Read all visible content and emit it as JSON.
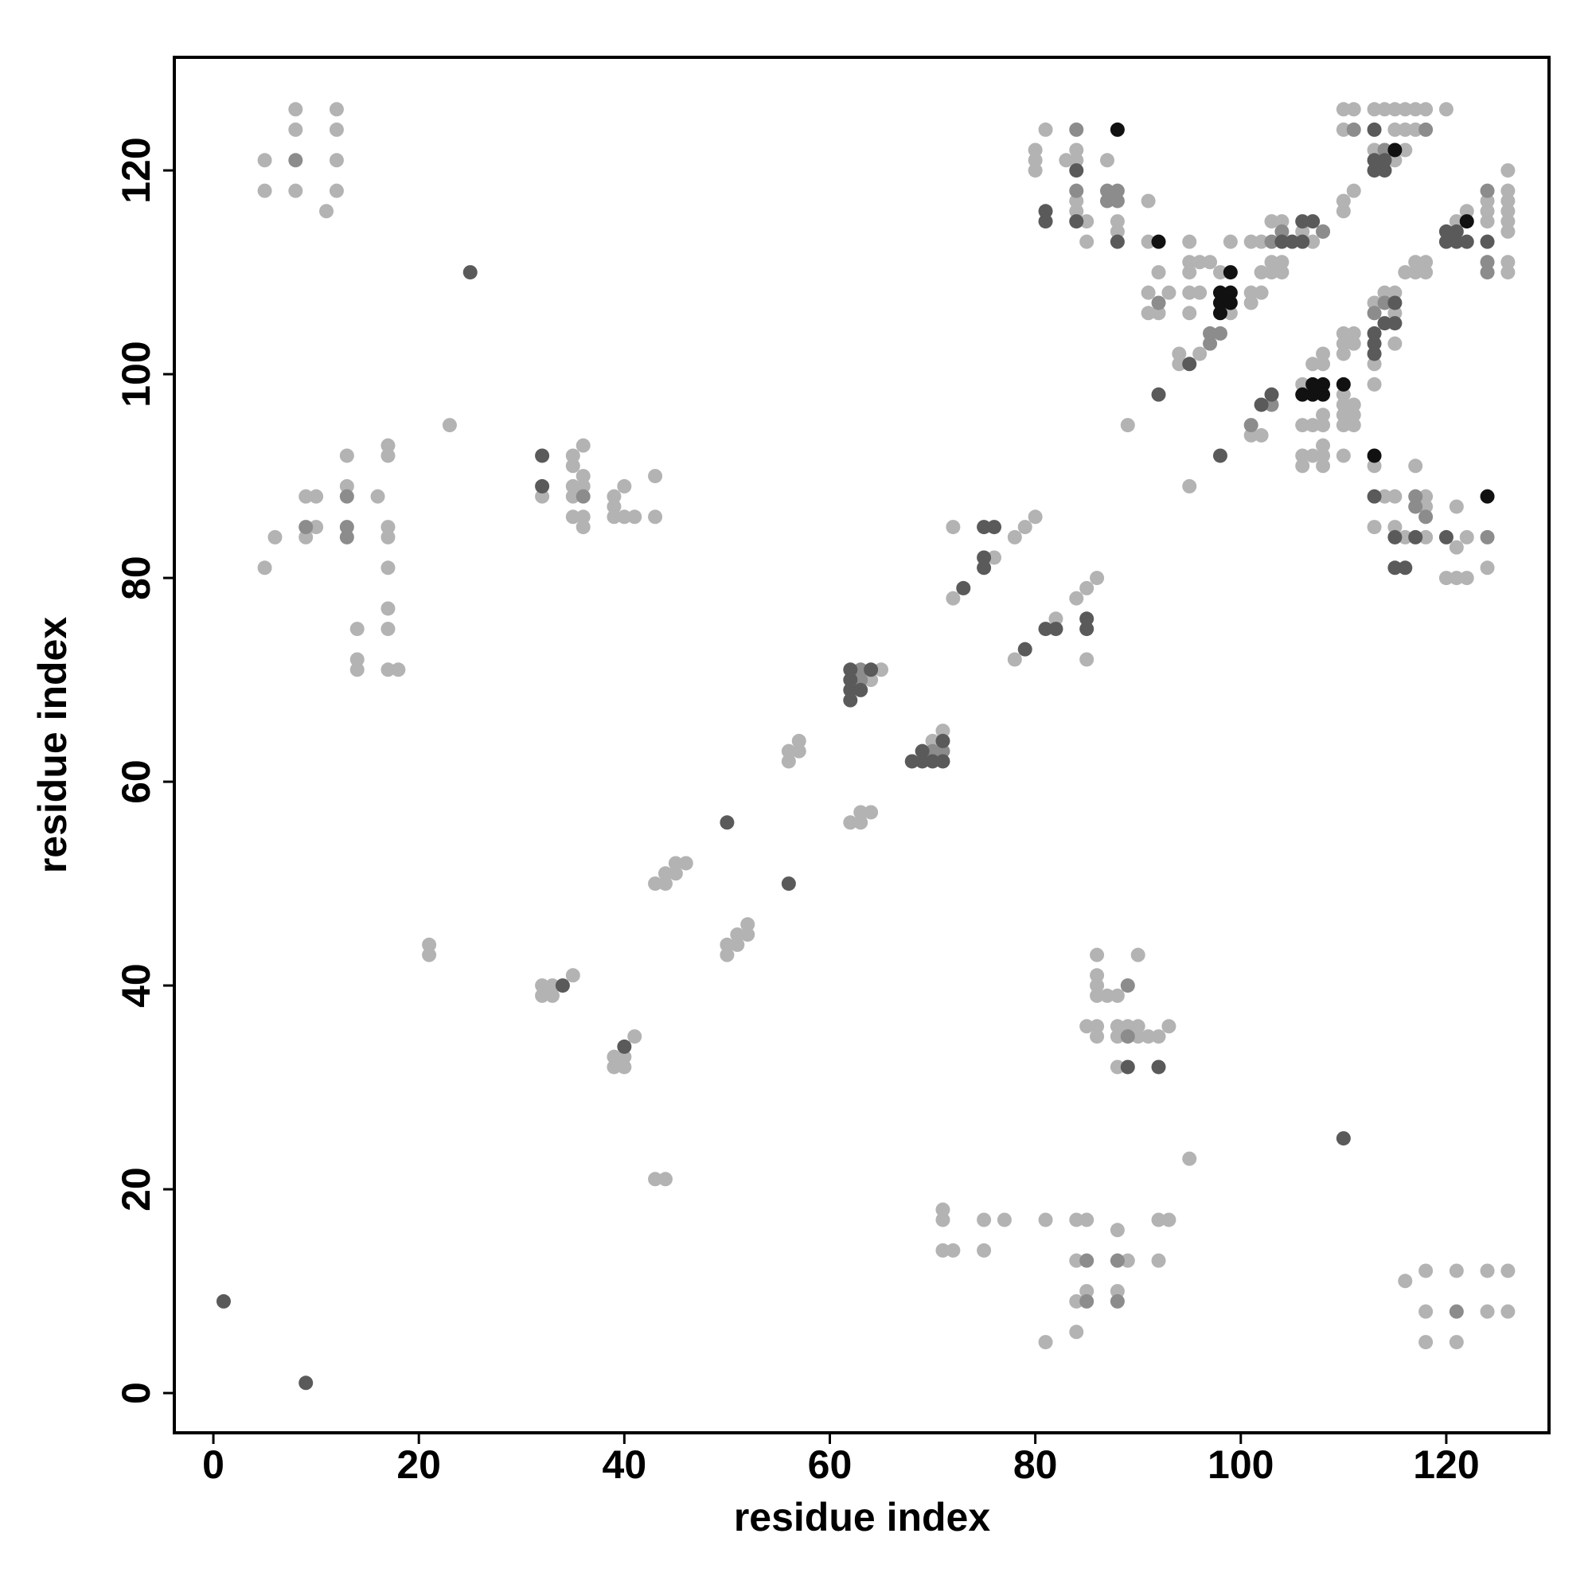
{
  "chart_data": {
    "type": "scatter",
    "xlabel": "residue index",
    "ylabel": "residue index",
    "xlim": [
      -3.8,
      130
    ],
    "ylim": [
      -3.9,
      131.1
    ],
    "xticks": [
      0,
      20,
      40,
      60,
      80,
      100,
      120
    ],
    "yticks": [
      0,
      20,
      40,
      60,
      80,
      100,
      120
    ],
    "series": [
      {
        "color": "#b3b3b3",
        "x": [
          5,
          5,
          8,
          8,
          8,
          12,
          12,
          12,
          12,
          11,
          5,
          6,
          9,
          10,
          10,
          9,
          13,
          13,
          16,
          17,
          17,
          17,
          17,
          17,
          17,
          17,
          14,
          14,
          14,
          17,
          18,
          23,
          32,
          35,
          35,
          35,
          36,
          36,
          35,
          36,
          35,
          36,
          36,
          39,
          39,
          39,
          40,
          40,
          41,
          43,
          43,
          21,
          21,
          43,
          44,
          32,
          32,
          33,
          33,
          35,
          39,
          39,
          40,
          40,
          41,
          43,
          44,
          44,
          45,
          45,
          46,
          50,
          50,
          51,
          51,
          52,
          52,
          56,
          56,
          57,
          57,
          62,
          63,
          63,
          64,
          64,
          65,
          70,
          71,
          72,
          72,
          76,
          78,
          79,
          80,
          78,
          82,
          84,
          85,
          86,
          85,
          86,
          86,
          86,
          86,
          87,
          88,
          85,
          86,
          86,
          88,
          88,
          89,
          90,
          90,
          91,
          92,
          93,
          88,
          90,
          95,
          71,
          71,
          71,
          72,
          75,
          75,
          77,
          81,
          81,
          84,
          85,
          84,
          84,
          85,
          84,
          88,
          88,
          89,
          92,
          93,
          92,
          116,
          118,
          118,
          118,
          121,
          121,
          124,
          124,
          126,
          126,
          81,
          80,
          80,
          80,
          83,
          84,
          84,
          84,
          84,
          87,
          85,
          85,
          88,
          88,
          91,
          91,
          95,
          99,
          101,
          92,
          91,
          91,
          93,
          92,
          95,
          96,
          97,
          95,
          98,
          95,
          96,
          95,
          94,
          94,
          96,
          99,
          89,
          95,
          101,
          101,
          102,
          102,
          102,
          103,
          103,
          104,
          104,
          104,
          103,
          106,
          107,
          108,
          111,
          110,
          110,
          110,
          111,
          110,
          113,
          114,
          115,
          116,
          117,
          118,
          120,
          115,
          116,
          117,
          113,
          116,
          115,
          116,
          117,
          117,
          118,
          118,
          122,
          121,
          124,
          124,
          124,
          126,
          126,
          126,
          126,
          126,
          126,
          126,
          126,
          114,
          115,
          113,
          115,
          115,
          113,
          113,
          111,
          110,
          110,
          111,
          110,
          108,
          108,
          107,
          110,
          110,
          111,
          110,
          111,
          110,
          111,
          108,
          108,
          106,
          107,
          106,
          107,
          108,
          108,
          106,
          108,
          110,
          106,
          101,
          102,
          113,
          113,
          114,
          115,
          115,
          116,
          117,
          118,
          118,
          118,
          121,
          121,
          120,
          121,
          122,
          122,
          124
        ],
        "values": [
          121,
          118,
          126,
          124,
          118,
          126,
          124,
          121,
          118,
          116,
          81,
          84,
          88,
          88,
          85,
          84,
          92,
          89,
          88,
          93,
          92,
          85,
          84,
          81,
          77,
          75,
          75,
          72,
          71,
          71,
          71,
          95,
          88,
          92,
          91,
          89,
          90,
          89,
          88,
          93,
          86,
          86,
          85,
          88,
          87,
          86,
          89,
          86,
          86,
          90,
          86,
          44,
          43,
          21,
          21,
          40,
          39,
          40,
          39,
          41,
          33,
          32,
          33,
          32,
          35,
          50,
          51,
          50,
          52,
          51,
          52,
          44,
          43,
          45,
          44,
          46,
          45,
          63,
          62,
          64,
          63,
          56,
          57,
          56,
          57,
          70,
          71,
          64,
          65,
          85,
          78,
          82,
          84,
          85,
          86,
          72,
          76,
          78,
          79,
          80,
          72,
          43,
          41,
          40,
          39,
          39,
          39,
          36,
          36,
          35,
          36,
          35,
          36,
          36,
          43,
          35,
          35,
          36,
          32,
          35,
          23,
          18,
          17,
          14,
          14,
          17,
          14,
          17,
          17,
          5,
          17,
          17,
          13,
          9,
          10,
          6,
          16,
          10,
          13,
          17,
          17,
          13,
          11,
          12,
          8,
          5,
          12,
          5,
          12,
          8,
          12,
          8,
          124,
          122,
          121,
          120,
          121,
          122,
          121,
          117,
          116,
          121,
          115,
          113,
          115,
          114,
          117,
          113,
          113,
          113,
          113,
          110,
          108,
          106,
          108,
          106,
          111,
          111,
          111,
          110,
          110,
          108,
          108,
          106,
          102,
          101,
          102,
          106,
          95,
          89,
          108,
          107,
          108,
          113,
          110,
          111,
          110,
          111,
          110,
          115,
          115,
          114,
          113,
          114,
          118,
          117,
          116,
          126,
          126,
          124,
          126,
          126,
          126,
          126,
          126,
          126,
          126,
          124,
          124,
          124,
          122,
          122,
          121,
          110,
          111,
          110,
          111,
          110,
          116,
          115,
          117,
          116,
          115,
          120,
          118,
          117,
          116,
          115,
          114,
          111,
          110,
          108,
          108,
          107,
          106,
          103,
          101,
          99,
          104,
          104,
          103,
          103,
          102,
          102,
          101,
          101,
          98,
          97,
          97,
          96,
          96,
          95,
          95,
          96,
          95,
          95,
          95,
          92,
          92,
          93,
          92,
          91,
          91,
          92,
          99,
          94,
          94,
          91,
          85,
          88,
          88,
          85,
          84,
          91,
          88,
          87,
          84,
          87,
          83,
          80,
          80,
          80,
          84,
          81
        ]
      },
      {
        "color": "#8c8c8c",
        "x": [
          8,
          9,
          13,
          13,
          13,
          36,
          63,
          63,
          70,
          71,
          89,
          89,
          85,
          88,
          85,
          88,
          121,
          84,
          84,
          88,
          87,
          87,
          88,
          92,
          97,
          97,
          98,
          103,
          104,
          111,
          108,
          114,
          118,
          124,
          124,
          124,
          124,
          113,
          114,
          103,
          101,
          117,
          117,
          118
        ],
        "values": [
          121,
          85,
          88,
          85,
          84,
          88,
          71,
          70,
          63,
          63,
          40,
          35,
          13,
          13,
          9,
          9,
          8,
          124,
          118,
          118,
          118,
          117,
          117,
          107,
          103,
          104,
          104,
          113,
          114,
          124,
          114,
          122,
          124,
          118,
          111,
          110,
          84,
          106,
          107,
          97,
          95,
          88,
          87,
          86
        ]
      },
      {
        "color": "#5a5a5a",
        "x": [
          25,
          32,
          32,
          1,
          9,
          34,
          40,
          50,
          56,
          62,
          62,
          62,
          62,
          63,
          64,
          68,
          69,
          69,
          70,
          71,
          71,
          73,
          75,
          76,
          75,
          75,
          79,
          81,
          82,
          85,
          85,
          89,
          92,
          110,
          81,
          81,
          84,
          84,
          88,
          95,
          92,
          98,
          104,
          106,
          107,
          106,
          105,
          113,
          113,
          113,
          114,
          114,
          121,
          120,
          121,
          120,
          122,
          124,
          113,
          113,
          115,
          115,
          114,
          113,
          102,
          103,
          113,
          115,
          115,
          116,
          117,
          120
        ],
        "values": [
          110,
          92,
          89,
          9,
          1,
          40,
          34,
          56,
          50,
          71,
          70,
          69,
          68,
          69,
          71,
          62,
          62,
          63,
          62,
          62,
          64,
          79,
          85,
          85,
          82,
          81,
          73,
          75,
          75,
          76,
          75,
          32,
          32,
          25,
          116,
          115,
          120,
          115,
          113,
          101,
          98,
          92,
          113,
          115,
          115,
          113,
          113,
          124,
          121,
          120,
          121,
          120,
          114,
          114,
          113,
          113,
          113,
          113,
          104,
          102,
          107,
          105,
          105,
          103,
          97,
          98,
          88,
          84,
          81,
          81,
          84,
          84
        ]
      },
      {
        "color": "#111111",
        "x": [
          88,
          92,
          98,
          98,
          99,
          99,
          98,
          99,
          115,
          122,
          106,
          107,
          107,
          108,
          108,
          110,
          113,
          124
        ],
        "values": [
          124,
          113,
          108,
          107,
          108,
          107,
          106,
          110,
          122,
          115,
          98,
          98,
          99,
          98,
          99,
          99,
          92,
          88
        ]
      }
    ]
  }
}
